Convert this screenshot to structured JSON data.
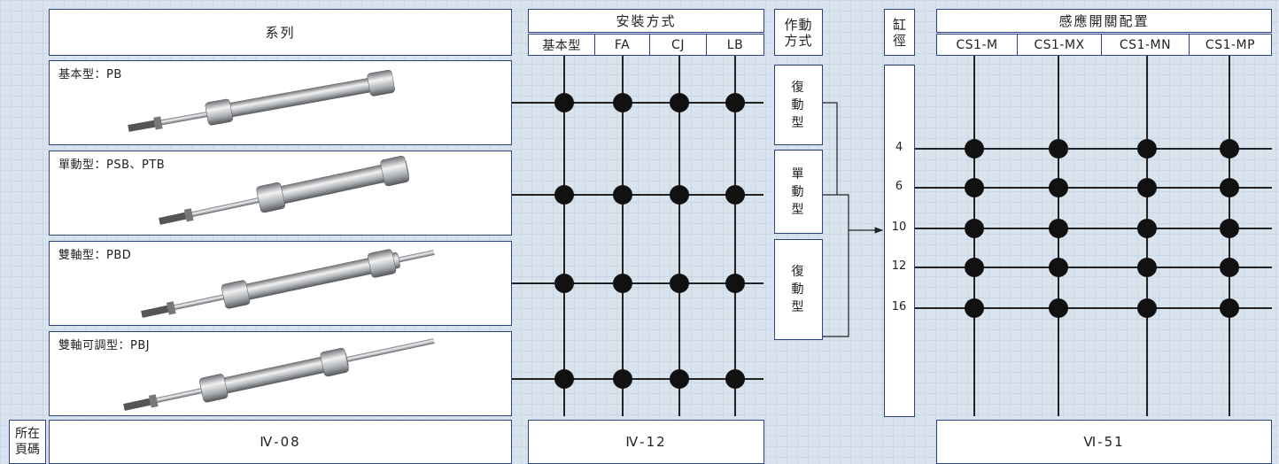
{
  "page_label": "所在頁碼",
  "series_column": {
    "header": "系列",
    "items": [
      "基本型：PB",
      "單動型：PSB、PTB",
      "雙軸型：PBD",
      "雙軸可調型：PBJ"
    ],
    "page": "Ⅳ-08"
  },
  "mounting": {
    "header": "安裝方式",
    "types": [
      "基本型",
      "FA",
      "CJ",
      "LB"
    ],
    "page": "Ⅳ-12"
  },
  "action": {
    "header": "作動方式",
    "types": [
      "復動型",
      "單動型",
      "復動型"
    ]
  },
  "bore": {
    "header": "缸徑",
    "sizes": [
      4,
      6,
      10,
      12,
      16
    ]
  },
  "switch": {
    "header": "感應開關配置",
    "types": [
      "CS1-M",
      "CS1-MX",
      "CS1-MN",
      "CS1-MP"
    ],
    "page": "Ⅵ-51"
  }
}
